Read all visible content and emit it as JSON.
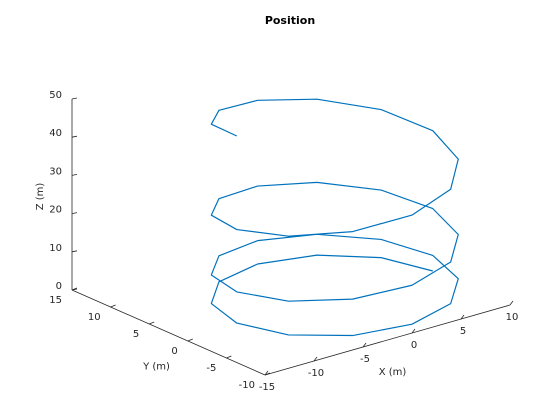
{
  "chart_data": {
    "type": "line3d",
    "title": "Position",
    "xlabel": "X (m)",
    "ylabel": "Y (m)",
    "zlabel": "Z (m)",
    "color": "#0072bd",
    "xlim": [
      -15,
      10
    ],
    "ylim": [
      -10,
      15
    ],
    "zlim": [
      0,
      50
    ],
    "xticks": [
      -15,
      -10,
      -5,
      0,
      5,
      10
    ],
    "yticks": [
      -10,
      -5,
      0,
      5,
      10,
      15
    ],
    "zticks": [
      0,
      10,
      20,
      30,
      40,
      50
    ],
    "x": [
      10,
      8.66,
      5,
      0,
      -5,
      -8.66,
      -10,
      -8.66,
      -5,
      0,
      5,
      8.66,
      10,
      8.66,
      5,
      0,
      -5,
      -8.66,
      -10,
      -8.66,
      -5,
      0,
      5,
      8.66,
      10,
      8.66,
      5,
      0,
      -5,
      -8.66,
      -10,
      -8.66,
      -5,
      0,
      5,
      8.66,
      10,
      8.66,
      5,
      0,
      -5,
      -8.66,
      -10
    ],
    "y": [
      0,
      5,
      8.66,
      10,
      8.66,
      5,
      0,
      -5,
      -8.66,
      -10,
      -8.66,
      -5,
      0,
      5,
      8.66,
      10,
      8.66,
      5,
      0,
      -5,
      -8.66,
      -10,
      -8.66,
      -5,
      0,
      5,
      8.66,
      10,
      8.66,
      5,
      0,
      -5,
      -8.66,
      -10,
      -8.66,
      -5,
      0,
      5,
      8.66,
      10,
      8.66,
      5,
      0
    ],
    "z": [
      0,
      0.03,
      0.11,
      0.26,
      0.45,
      0.71,
      1.02,
      1.39,
      1.81,
      2.3,
      2.83,
      3.43,
      4.08,
      4.79,
      5.56,
      6.38,
      7.26,
      8.19,
      9.18,
      10.23,
      11.34,
      12.5,
      13.72,
      14.99,
      16.33,
      17.72,
      19.16,
      20.66,
      22.22,
      23.84,
      25.51,
      27.24,
      29.02,
      30.87,
      32.77,
      34.72,
      36.73,
      38.8,
      40.93,
      43.11,
      45.35,
      47.65,
      50
    ]
  }
}
